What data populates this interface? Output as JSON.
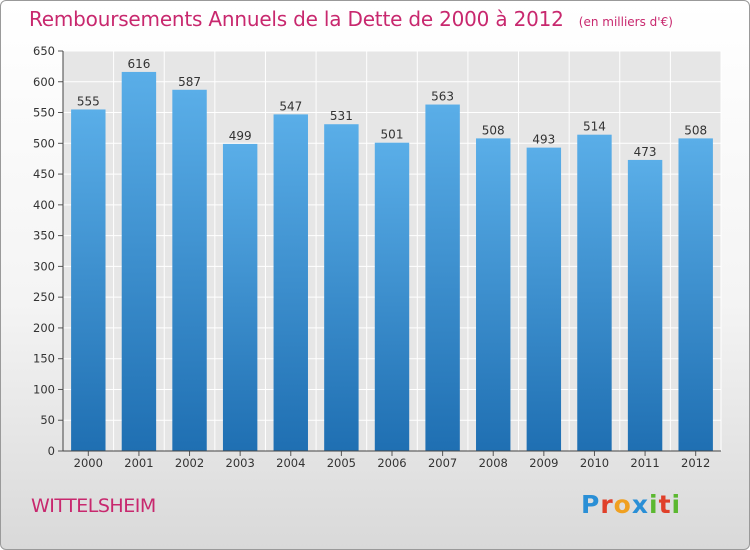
{
  "header": {
    "title": "Remboursements Annuels de la Dette de 2000 à 2012",
    "unit": "(en milliers d'€)"
  },
  "footer": {
    "city": "WITTELSHEIM",
    "logo_letters": [
      "P",
      "r",
      "o",
      "x",
      "i",
      "t",
      "i"
    ]
  },
  "colors": {
    "title": "#c8286e",
    "bar_top": "#5aaee8",
    "bar_bottom": "#1f6fb2",
    "logo": [
      "#2a8fd6",
      "#e0402a",
      "#f0a020",
      "#2a8fd6",
      "#5bb830",
      "#e0402a",
      "#5bb830"
    ]
  },
  "chart_data": {
    "type": "bar",
    "categories": [
      "2000",
      "2001",
      "2002",
      "2003",
      "2004",
      "2005",
      "2006",
      "2007",
      "2008",
      "2009",
      "2010",
      "2011",
      "2012"
    ],
    "values": [
      555,
      616,
      587,
      499,
      547,
      531,
      501,
      563,
      508,
      493,
      514,
      473,
      508
    ],
    "data_labels": [
      "555",
      "616",
      "587",
      "499",
      "547",
      "531",
      "501",
      "563",
      "508",
      "493",
      "514",
      "473",
      "508"
    ],
    "ylim": [
      0,
      650
    ],
    "yticks": [
      "0",
      "50",
      "100",
      "150",
      "200",
      "250",
      "300",
      "350",
      "400",
      "450",
      "500",
      "550",
      "600",
      "650"
    ],
    "grid": true
  }
}
